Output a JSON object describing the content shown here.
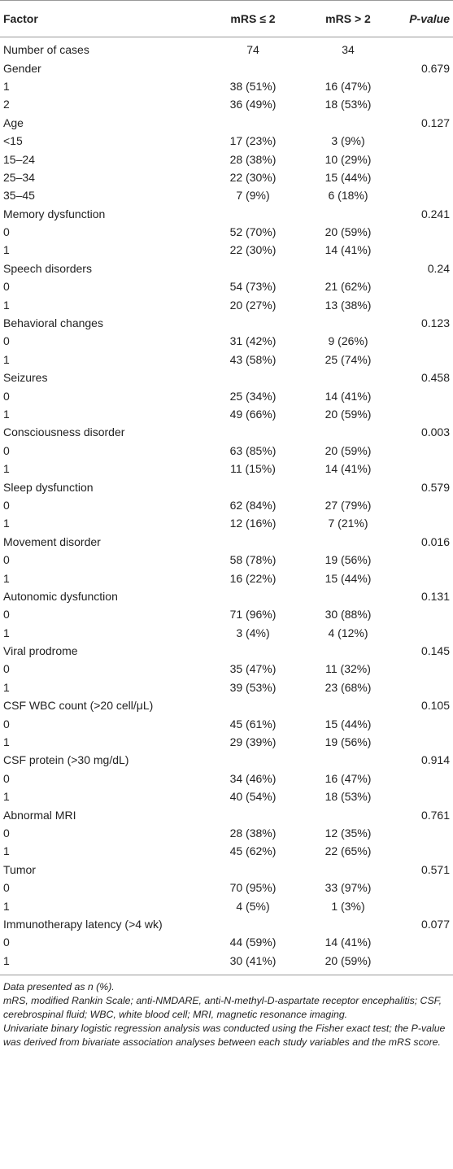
{
  "table": {
    "header": [
      "Factor",
      "mRS ≤ 2",
      "mRS > 2",
      "P-value"
    ],
    "rows": [
      [
        "Number of cases",
        "74",
        "34",
        null
      ],
      [
        "Gender",
        null,
        null,
        "0.679"
      ],
      [
        "1",
        "38 (51%)",
        "16 (47%)",
        null
      ],
      [
        "2",
        "36 (49%)",
        "18 (53%)",
        null
      ],
      [
        "Age",
        null,
        null,
        "0.127"
      ],
      [
        "<15",
        "17 (23%)",
        "3 (9%)",
        null
      ],
      [
        "15–24",
        "28 (38%)",
        "10 (29%)",
        null
      ],
      [
        "25–34",
        "22 (30%)",
        "15 (44%)",
        null
      ],
      [
        "35–45",
        "7 (9%)",
        "6 (18%)",
        null
      ],
      [
        "Memory dysfunction",
        null,
        null,
        "0.241"
      ],
      [
        "0",
        "52 (70%)",
        "20 (59%)",
        null
      ],
      [
        "1",
        "22 (30%)",
        "14 (41%)",
        null
      ],
      [
        "Speech disorders",
        null,
        null,
        "0.24"
      ],
      [
        "0",
        "54 (73%)",
        "21 (62%)",
        null
      ],
      [
        "1",
        "20 (27%)",
        "13 (38%)",
        null
      ],
      [
        "Behavioral changes",
        null,
        null,
        "0.123"
      ],
      [
        "0",
        "31 (42%)",
        "9 (26%)",
        null
      ],
      [
        "1",
        "43 (58%)",
        "25 (74%)",
        null
      ],
      [
        "Seizures",
        null,
        null,
        "0.458"
      ],
      [
        "0",
        "25 (34%)",
        "14 (41%)",
        null
      ],
      [
        "1",
        "49 (66%)",
        "20 (59%)",
        null
      ],
      [
        "Consciousness disorder",
        null,
        null,
        "0.003"
      ],
      [
        "0",
        "63 (85%)",
        "20 (59%)",
        null
      ],
      [
        "1",
        "11 (15%)",
        "14 (41%)",
        null
      ],
      [
        "Sleep dysfunction",
        null,
        null,
        "0.579"
      ],
      [
        "0",
        "62 (84%)",
        "27 (79%)",
        null
      ],
      [
        "1",
        "12 (16%)",
        "7 (21%)",
        null
      ],
      [
        "Movement disorder",
        null,
        null,
        "0.016"
      ],
      [
        "0",
        "58 (78%)",
        "19 (56%)",
        null
      ],
      [
        "1",
        "16 (22%)",
        "15 (44%)",
        null
      ],
      [
        "Autonomic dysfunction",
        null,
        null,
        "0.131"
      ],
      [
        "0",
        "71 (96%)",
        "30 (88%)",
        null
      ],
      [
        "1",
        "3 (4%)",
        "4 (12%)",
        null
      ],
      [
        "Viral prodrome",
        null,
        null,
        "0.145"
      ],
      [
        "0",
        "35 (47%)",
        "11 (32%)",
        null
      ],
      [
        "1",
        "39 (53%)",
        "23 (68%)",
        null
      ],
      [
        "CSF WBC count (>20 cell/μL)",
        null,
        null,
        "0.105"
      ],
      [
        "0",
        "45 (61%)",
        "15 (44%)",
        null
      ],
      [
        "1",
        "29 (39%)",
        "19 (56%)",
        null
      ],
      [
        "CSF protein (>30 mg/dL)",
        null,
        null,
        "0.914"
      ],
      [
        "0",
        "34 (46%)",
        "16 (47%)",
        null
      ],
      [
        "1",
        "40 (54%)",
        "18 (53%)",
        null
      ],
      [
        "Abnormal MRI",
        null,
        null,
        "0.761"
      ],
      [
        "0",
        "28 (38%)",
        "12 (35%)",
        null
      ],
      [
        "1",
        "45 (62%)",
        "22 (65%)",
        null
      ],
      [
        "Tumor",
        null,
        null,
        "0.571"
      ],
      [
        "0",
        "70 (95%)",
        "33 (97%)",
        null
      ],
      [
        "1",
        "4 (5%)",
        "1 (3%)",
        null
      ],
      [
        "Immunotherapy latency (>4 wk)",
        null,
        null,
        "0.077"
      ],
      [
        "0",
        "44 (59%)",
        "14 (41%)",
        null
      ],
      [
        "1",
        "30 (41%)",
        "20 (59%)",
        null
      ]
    ]
  },
  "footnotes": [
    "Data presented as n (%).",
    "mRS, modified Rankin Scale; anti-NMDARE, anti-N-methyl-D-aspartate receptor encephalitis; CSF, cerebrospinal fluid; WBC, white blood cell; MRI, magnetic resonance imaging.",
    "Univariate binary logistic regression analysis was conducted using the Fisher exact test; the P-value was derived from bivariate association analyses between each study variables and the mRS score."
  ]
}
